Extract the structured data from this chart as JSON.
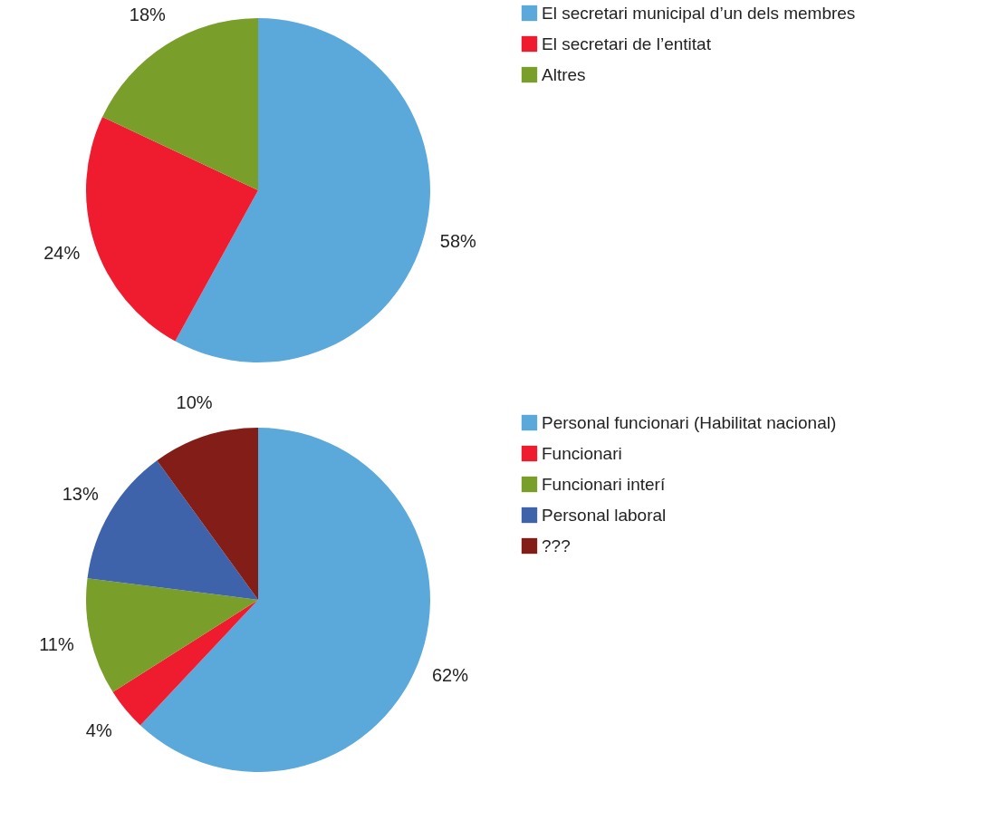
{
  "chart_data": [
    {
      "type": "pie",
      "categories": [
        "El secretari municipal d’un dels membres",
        "El secretari de l’entitat",
        "Altres"
      ],
      "values": [
        58,
        24,
        18
      ],
      "colors": [
        "#5ba8db",
        "#ee1c2e",
        "#7a9e2a"
      ],
      "value_labels": [
        "58%",
        "24%",
        "18%"
      ],
      "legend": "right"
    },
    {
      "type": "pie",
      "categories": [
        "Personal funcionari (Habilitat nacional)",
        "Funcionari",
        "Funcionari interí",
        "Personal laboral",
        "???"
      ],
      "values": [
        62,
        4,
        11,
        13,
        10
      ],
      "colors": [
        "#5ba8db",
        "#ee1c2e",
        "#7a9e2a",
        "#3e63aa",
        "#821e17"
      ],
      "value_labels": [
        "62%",
        "4%",
        "11%",
        "13%",
        "10%"
      ],
      "legend": "right"
    }
  ]
}
